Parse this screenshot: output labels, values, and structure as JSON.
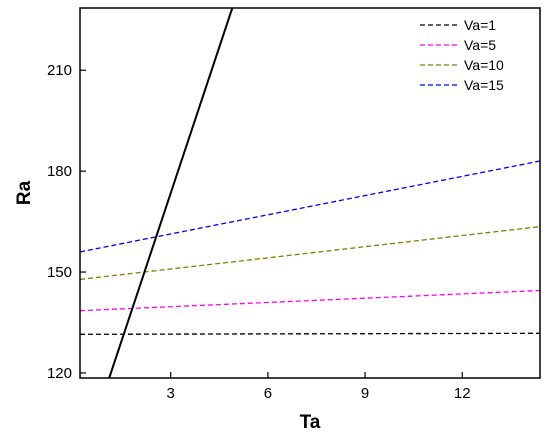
{
  "chart_data": {
    "type": "line",
    "xlabel": "Ta",
    "ylabel": "Ra",
    "xlim": [
      0.2,
      14.4
    ],
    "ylim": [
      118.5,
      228.5
    ],
    "xticks": [
      3,
      6,
      9,
      12
    ],
    "yticks": [
      120,
      150,
      180,
      210
    ],
    "legend_position": "top-right",
    "grid": false,
    "series": [
      {
        "name": "Va=1",
        "color": "#000000",
        "dash": "dashed",
        "x": [
          0.2,
          14.4
        ],
        "y": [
          131.5,
          131.8
        ]
      },
      {
        "name": "Va=5",
        "color": "#ff00ff",
        "dash": "dashed",
        "x": [
          0.2,
          14.4
        ],
        "y": [
          138.5,
          144.5
        ]
      },
      {
        "name": "Va=10",
        "color": "#808000",
        "dash": "dashed",
        "x": [
          0.2,
          14.4
        ],
        "y": [
          147.8,
          163.5
        ]
      },
      {
        "name": "Va=15",
        "color": "#0000ff",
        "dash": "dashed",
        "x": [
          0.2,
          14.4
        ],
        "y": [
          156.0,
          183.0
        ]
      }
    ],
    "boundary_curve": {
      "color": "#000000",
      "dash": "solid",
      "x": [
        1.1,
        4.9
      ],
      "y": [
        118.5,
        228.5
      ]
    }
  }
}
